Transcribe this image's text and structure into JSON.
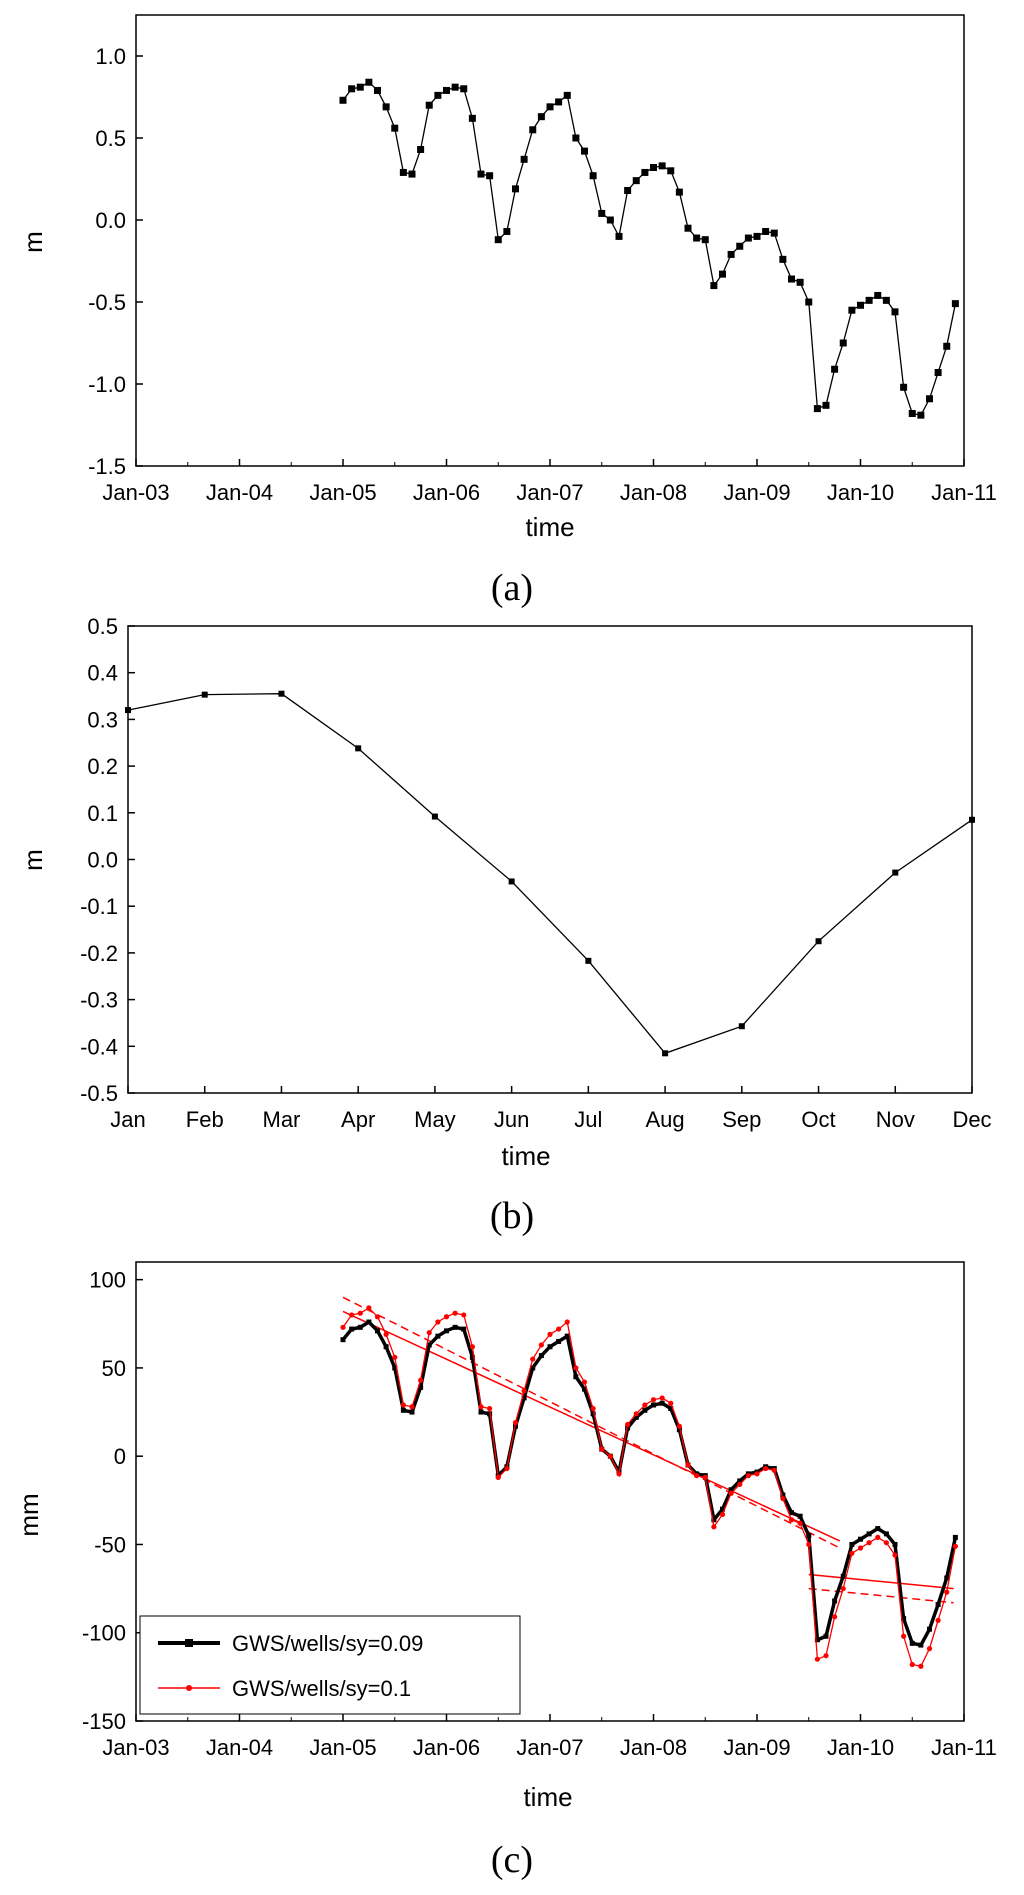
{
  "chart_data": [
    {
      "panel_label": "(a)",
      "type": "line",
      "xlabel": "time",
      "ylabel": "m",
      "x_ticks": [
        "Jan-03",
        "Jan-04",
        "Jan-05",
        "Jan-06",
        "Jan-07",
        "Jan-08",
        "Jan-09",
        "Jan-10",
        "Jan-11"
      ],
      "y_ticks": [
        "1.0",
        "0.5",
        "0.0",
        "-0.5",
        "-1.0",
        "-1.5"
      ],
      "xlim": [
        2003,
        2011
      ],
      "ylim": [
        -1.5,
        1.25
      ],
      "series": [
        {
          "color": "#000000",
          "marker": "square",
          "values": [
            0.73,
            0.8,
            0.81,
            0.84,
            0.79,
            0.69,
            0.56,
            0.29,
            0.28,
            0.43,
            0.7,
            0.76,
            0.79,
            0.81,
            0.8,
            0.62,
            0.28,
            0.27,
            -0.12,
            -0.07,
            0.19,
            0.37,
            0.55,
            0.63,
            0.69,
            0.72,
            0.76,
            0.5,
            0.42,
            0.27,
            0.04,
            0.0,
            -0.1,
            0.18,
            0.24,
            0.29,
            0.32,
            0.33,
            0.3,
            0.17,
            -0.05,
            -0.11,
            -0.12,
            -0.4,
            -0.33,
            -0.21,
            -0.16,
            -0.11,
            -0.1,
            -0.07,
            -0.08,
            -0.24,
            -0.36,
            -0.38,
            -0.5,
            -1.15,
            -1.13,
            -0.91,
            -0.75,
            -0.55,
            -0.52,
            -0.49,
            -0.46,
            -0.49,
            -0.56,
            -1.02,
            -1.18,
            -1.19,
            -1.09,
            -0.93,
            -0.77,
            -0.51
          ]
        }
      ]
    },
    {
      "panel_label": "(b)",
      "type": "line",
      "xlabel": "time",
      "ylabel": "m",
      "categories": [
        "Jan",
        "Feb",
        "Mar",
        "Apr",
        "May",
        "Jun",
        "Jul",
        "Aug",
        "Sep",
        "Oct",
        "Nov",
        "Dec"
      ],
      "y_ticks": [
        "0.5",
        "0.4",
        "0.3",
        "0.2",
        "0.1",
        "0.0",
        "-0.1",
        "-0.2",
        "-0.3",
        "-0.4",
        "-0.5"
      ],
      "ylim": [
        -0.5,
        0.5
      ],
      "series": [
        {
          "color": "#000000",
          "marker": "square",
          "values": [
            0.32,
            0.353,
            0.355,
            0.238,
            0.092,
            -0.047,
            -0.217,
            -0.415,
            -0.357,
            -0.175,
            -0.028,
            0.085
          ]
        }
      ]
    },
    {
      "panel_label": "(c)",
      "type": "line",
      "xlabel": "time",
      "ylabel": "mm",
      "x_ticks": [
        "Jan-03",
        "Jan-04",
        "Jan-05",
        "Jan-06",
        "Jan-07",
        "Jan-08",
        "Jan-09",
        "Jan-10",
        "Jan-11"
      ],
      "y_ticks": [
        "100",
        "50",
        "0",
        "-50",
        "-100",
        "-150"
      ],
      "xlim": [
        2003,
        2011
      ],
      "ylim": [
        -150,
        110
      ],
      "legend_position": "bottom-left",
      "series": [
        {
          "name": "GWS/wells/sy=0.09",
          "color": "#000000",
          "marker": "square",
          "values": [
            66,
            72,
            73,
            76,
            71,
            62,
            50,
            26,
            25,
            39,
            63,
            68,
            71,
            73,
            72,
            56,
            25,
            24,
            -11,
            -6,
            17,
            33,
            50,
            57,
            62,
            65,
            68,
            45,
            38,
            24,
            4,
            0,
            -9,
            16,
            22,
            26,
            29,
            30,
            27,
            15,
            -5,
            -10,
            -11,
            -36,
            -30,
            -19,
            -14,
            -10,
            -9,
            -6,
            -7,
            -22,
            -32,
            -34,
            -45,
            -104,
            -102,
            -82,
            -68,
            -50,
            -47,
            -44,
            -41,
            -44,
            -50,
            -92,
            -106,
            -107,
            -98,
            -84,
            -69,
            -46
          ]
        },
        {
          "name": "GWS/wells/sy=0.1",
          "color": "#ff0000",
          "marker": "dot",
          "values": [
            73,
            80,
            81,
            84,
            79,
            69,
            56,
            29,
            28,
            43,
            70,
            76,
            79,
            81,
            80,
            62,
            28,
            27,
            -12,
            -7,
            19,
            37,
            55,
            63,
            69,
            72,
            76,
            50,
            42,
            27,
            4,
            0,
            -10,
            18,
            24,
            29,
            32,
            33,
            30,
            17,
            -5,
            -11,
            -12,
            -40,
            -33,
            -21,
            -16,
            -11,
            -10,
            -7,
            -8,
            -24,
            -36,
            -38,
            -50,
            -115,
            -113,
            -91,
            -75,
            -55,
            -52,
            -49,
            -46,
            -49,
            -56,
            -102,
            -118,
            -119,
            -109,
            -93,
            -77,
            -51
          ]
        }
      ],
      "trend_lines": [
        {
          "style": "solid",
          "color": "#ff0000",
          "from": [
            2005.0,
            82
          ],
          "to": [
            2009.8,
            -48
          ]
        },
        {
          "style": "dashed",
          "color": "#ff0000",
          "from": [
            2005.0,
            90
          ],
          "to": [
            2009.8,
            -52
          ]
        },
        {
          "style": "solid",
          "color": "#ff0000",
          "from": [
            2009.5,
            -67
          ],
          "to": [
            2010.9,
            -75
          ]
        },
        {
          "style": "dashed",
          "color": "#ff0000",
          "from": [
            2009.5,
            -75
          ],
          "to": [
            2010.9,
            -83
          ]
        }
      ]
    }
  ]
}
